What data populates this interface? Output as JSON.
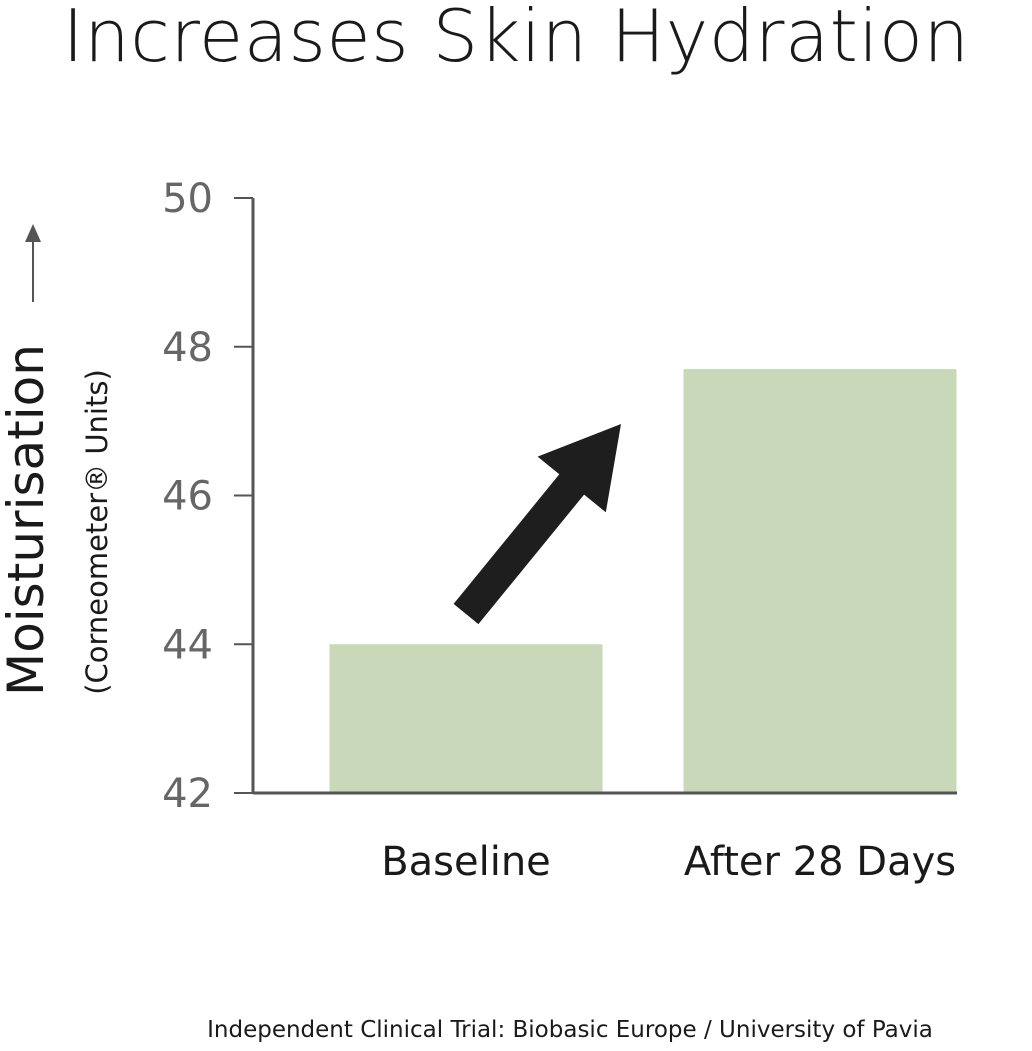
{
  "title": "Increases Skin Hydration",
  "y_axis": {
    "label": "Moisturisation",
    "sublabel": "(Corneometer® Units)"
  },
  "source": "Independent Clinical Trial: Biobasic Europe / University of Pavia",
  "colors": {
    "bar": "#c9d8b9",
    "axis": "#555555",
    "tick_text": "#666666",
    "arrow": "#1e1e1e",
    "text": "#1a1a1a"
  },
  "chart_data": {
    "type": "bar",
    "title": "Increases Skin Hydration",
    "categories": [
      "Baseline",
      "After 28 Days"
    ],
    "values": [
      44.0,
      47.7
    ],
    "ylabel": "Moisturisation (Corneometer® Units)",
    "xlabel": "",
    "ylim": [
      42,
      50
    ],
    "yticks": [
      42,
      44,
      46,
      48,
      50
    ],
    "grid": false,
    "legend": "none",
    "annotation": "upward arrow indicating increase"
  }
}
